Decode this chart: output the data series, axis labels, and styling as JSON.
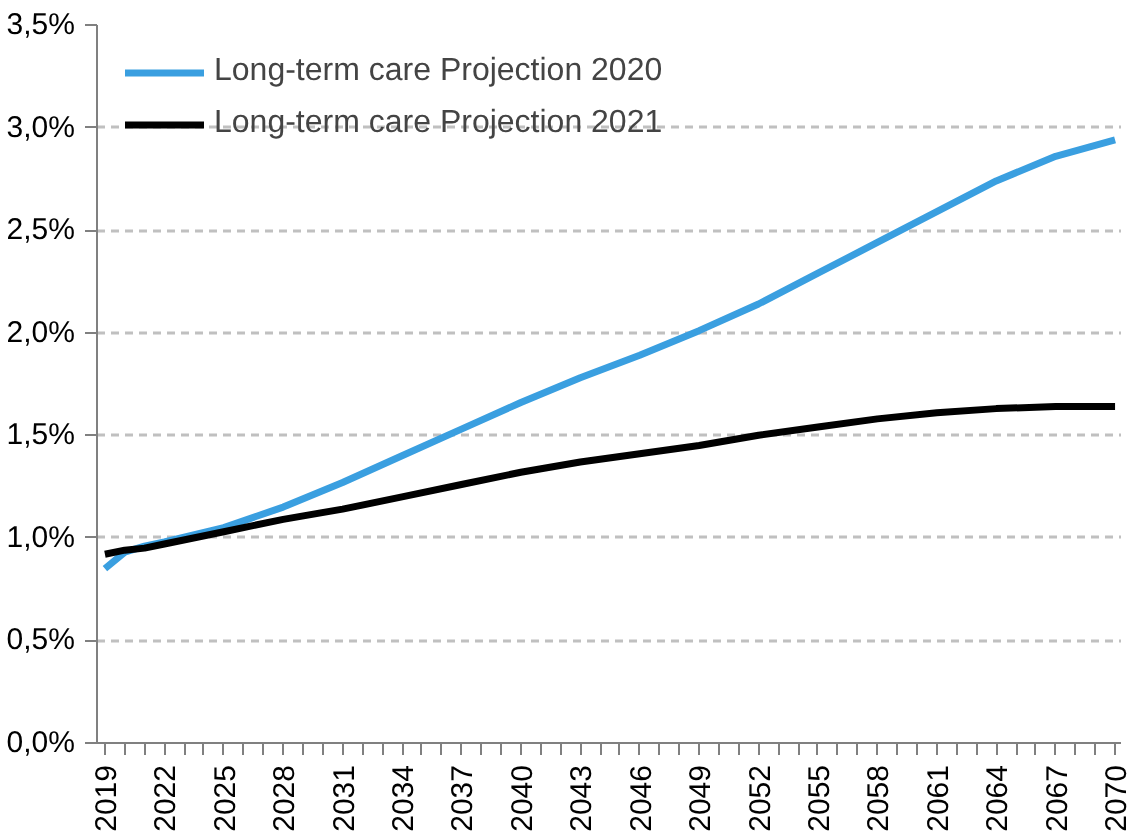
{
  "chart_data": {
    "type": "line",
    "x": [
      2019,
      2020,
      2021,
      2022,
      2025,
      2028,
      2031,
      2034,
      2037,
      2040,
      2043,
      2046,
      2049,
      2052,
      2055,
      2058,
      2061,
      2064,
      2067,
      2070
    ],
    "series": [
      {
        "name": "Long-term care Projection 2020",
        "color": "#3a9fe0",
        "values": [
          0.85,
          0.93,
          0.96,
          0.98,
          1.05,
          1.15,
          1.27,
          1.4,
          1.53,
          1.66,
          1.78,
          1.89,
          2.01,
          2.14,
          2.29,
          2.44,
          2.59,
          2.74,
          2.86,
          2.94
        ]
      },
      {
        "name": "Long-term care Projection 2021",
        "color": "#000000",
        "values": [
          0.92,
          0.94,
          0.95,
          0.97,
          1.03,
          1.09,
          1.14,
          1.2,
          1.26,
          1.32,
          1.37,
          1.41,
          1.45,
          1.5,
          1.54,
          1.58,
          1.61,
          1.63,
          1.64,
          1.64
        ]
      }
    ],
    "xlim": [
      2018.6,
      2070.3
    ],
    "xticks": [
      2019,
      {
        "value": 2020,
        "label": null
      },
      {
        "value": 2021,
        "label": null
      },
      2022,
      {
        "value": 2023,
        "label": null
      },
      {
        "value": 2024,
        "label": null
      },
      2025,
      {
        "value": 2026,
        "label": null
      },
      {
        "value": 2027,
        "label": null
      },
      2028,
      {
        "value": 2029,
        "label": null
      },
      {
        "value": 2030,
        "label": null
      },
      2031,
      {
        "value": 2032,
        "label": null
      },
      {
        "value": 2033,
        "label": null
      },
      2034,
      {
        "value": 2035,
        "label": null
      },
      {
        "value": 2036,
        "label": null
      },
      2037,
      {
        "value": 2038,
        "label": null
      },
      {
        "value": 2039,
        "label": null
      },
      2040,
      {
        "value": 2041,
        "label": null
      },
      {
        "value": 2042,
        "label": null
      },
      2043,
      {
        "value": 2044,
        "label": null
      },
      {
        "value": 2045,
        "label": null
      },
      2046,
      {
        "value": 2047,
        "label": null
      },
      {
        "value": 2048,
        "label": null
      },
      2049,
      {
        "value": 2050,
        "label": null
      },
      {
        "value": 2051,
        "label": null
      },
      2052,
      {
        "value": 2053,
        "label": null
      },
      {
        "value": 2054,
        "label": null
      },
      2055,
      {
        "value": 2056,
        "label": null
      },
      {
        "value": 2057,
        "label": null
      },
      2058,
      {
        "value": 2059,
        "label": null
      },
      {
        "value": 2060,
        "label": null
      },
      2061,
      {
        "value": 2062,
        "label": null
      },
      {
        "value": 2063,
        "label": null
      },
      2064,
      {
        "value": 2065,
        "label": null
      },
      {
        "value": 2066,
        "label": null
      },
      2067,
      {
        "value": 2068,
        "label": null
      },
      {
        "value": 2069,
        "label": null
      },
      2070
    ],
    "ylim": [
      0,
      3.5
    ],
    "yticks": [
      {
        "value": 0,
        "label": "0,0%"
      },
      {
        "value": 0.5,
        "label": "0,5%"
      },
      {
        "value": 1,
        "label": "1,0%"
      },
      {
        "value": 1.5,
        "label": "1,5%"
      },
      {
        "value": 2,
        "label": "2,0%"
      },
      {
        "value": 2.5,
        "label": "2,5%"
      },
      {
        "value": 3,
        "label": "3,0%"
      },
      {
        "value": 3.5,
        "label": "3,5%"
      }
    ],
    "grid": "y",
    "legend": "top left",
    "line_style": "solid"
  }
}
